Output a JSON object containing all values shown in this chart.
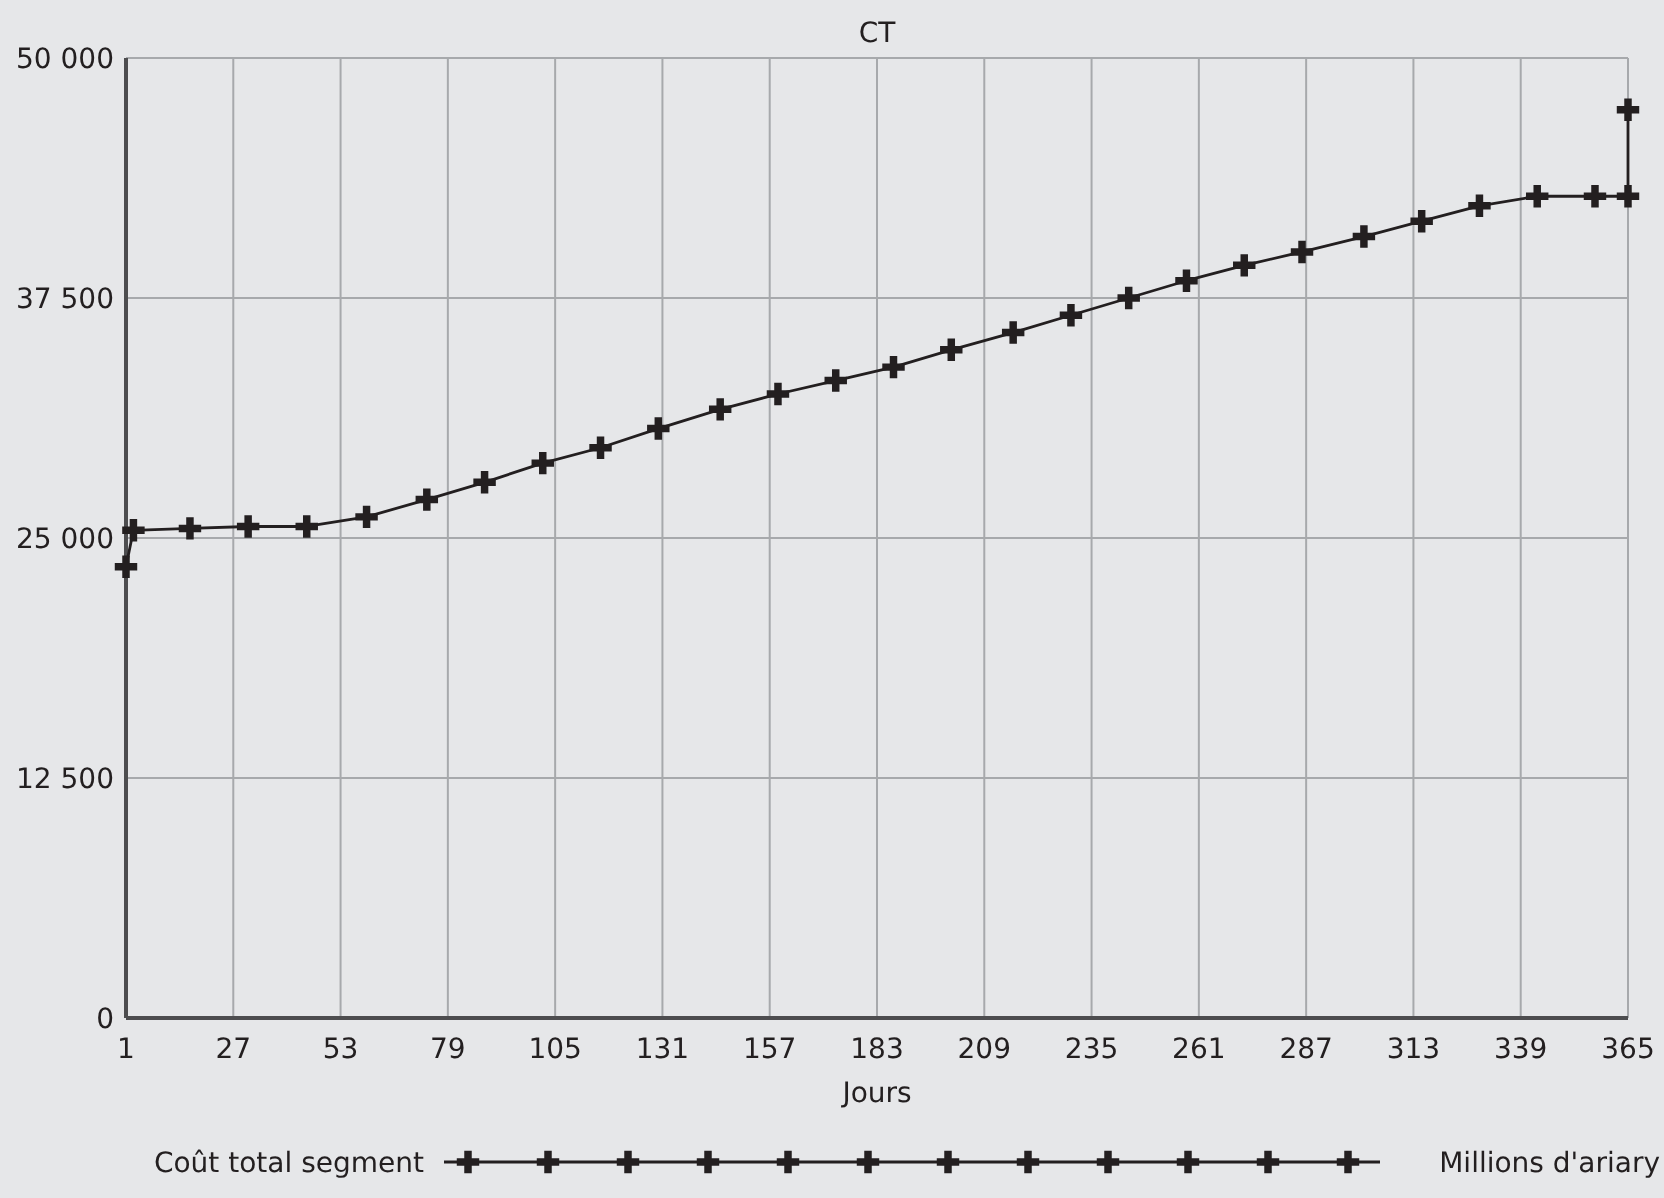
{
  "chart_data": {
    "type": "line",
    "title": "CT",
    "xlabel": "Jours",
    "annotations": [
      "Millions d'ariary"
    ],
    "xlim": [
      1,
      365
    ],
    "xticks": [
      1,
      27,
      53,
      79,
      105,
      131,
      157,
      183,
      209,
      235,
      261,
      287,
      313,
      339,
      365
    ],
    "ylim": [
      0,
      50000
    ],
    "yticks": [
      0,
      {
        "value": 12500,
        "label": "12 500"
      },
      {
        "value": 25000,
        "label": "25 000"
      },
      {
        "value": 37500,
        "label": "37 500"
      },
      {
        "value": 50000,
        "label": "50 000"
      }
    ],
    "grid": true,
    "legend": "bottom",
    "marker": "cross",
    "series": [
      {
        "name": "Coût total segment",
        "color": "#231f20",
        "x": [
          1,
          2.8,
          16.5,
          30.6,
          44.8,
          59.3,
          73.9,
          87.9,
          102,
          116,
          130,
          145,
          159,
          173,
          187,
          201,
          216,
          230,
          244,
          258,
          272,
          286,
          301,
          315,
          329,
          343,
          357,
          365,
          365
        ],
        "values": [
          23500,
          25400,
          25500,
          25600,
          25600,
          26100,
          27000,
          27900,
          28900,
          29700,
          30700,
          31700,
          32500,
          33200,
          33900,
          34800,
          35700,
          36600,
          37500,
          38400,
          39200,
          39900,
          40700,
          41500,
          42300,
          42800,
          42800,
          42800,
          47300
        ]
      }
    ]
  }
}
